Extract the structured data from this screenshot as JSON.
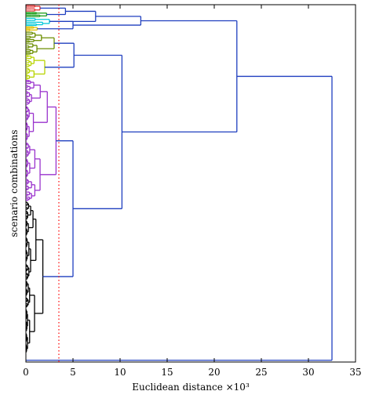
{
  "chart_data": {
    "type": "dendrogram",
    "orientation": "horizontal",
    "xlabel": "Euclidean distance ×10³",
    "ylabel": "scenario combinations",
    "xlim": [
      0,
      35
    ],
    "xticks": [
      0,
      5,
      10,
      15,
      20,
      25,
      30,
      35
    ],
    "threshold": {
      "value": 3.5,
      "color": "#ff0000",
      "style": "dotted"
    },
    "colors": {
      "top": "#1f3fbf",
      "red": "#e03030",
      "green": "#1a9e1a",
      "cyan": "#00c8d8",
      "yellow": "#e0c000",
      "olive": "#6b8e00",
      "lime": "#b8d400",
      "purple": "#9a32cd",
      "black": "#000000"
    },
    "clusters": [
      {
        "name": "red",
        "range": [
          0.0,
          0.02
        ],
        "height": 1.5
      },
      {
        "name": "green",
        "range": [
          0.02,
          0.035
        ],
        "height": 2.2
      },
      {
        "name": "cyan",
        "range": [
          0.035,
          0.06
        ],
        "height": 2.5
      },
      {
        "name": "yellow",
        "range": [
          0.06,
          0.075
        ],
        "height": 1.2
      },
      {
        "name": "olive",
        "range": [
          0.075,
          0.14
        ],
        "height": 3.0
      },
      {
        "name": "lime",
        "range": [
          0.14,
          0.21
        ],
        "height": 2.0
      },
      {
        "name": "purple",
        "range": [
          0.21,
          0.55
        ],
        "height": 3.2
      },
      {
        "name": "black",
        "range": [
          0.55,
          0.975
        ],
        "height": 1.8
      }
    ],
    "merges": [
      {
        "id": "m1",
        "children": [
          "red",
          "green"
        ],
        "height": 4.2
      },
      {
        "id": "m2",
        "children": [
          "m1",
          "cyan"
        ],
        "height": 7.4
      },
      {
        "id": "m3",
        "children": [
          "cyan",
          "yellow"
        ],
        "height": 5.0
      },
      {
        "id": "m4",
        "children": [
          "m2",
          "m3"
        ],
        "height": 12.2
      },
      {
        "id": "m5",
        "children": [
          "olive",
          "lime"
        ],
        "height": 5.1
      },
      {
        "id": "m6",
        "children": [
          "purple",
          "black"
        ],
        "height": 5.0
      },
      {
        "id": "m7",
        "children": [
          "m5",
          "m6"
        ],
        "height": 10.2
      },
      {
        "id": "m8",
        "children": [
          "m4",
          "m7"
        ],
        "height": 22.4
      },
      {
        "id": "m9",
        "children": [
          "m8",
          "outlier"
        ],
        "height": 32.5
      }
    ]
  }
}
